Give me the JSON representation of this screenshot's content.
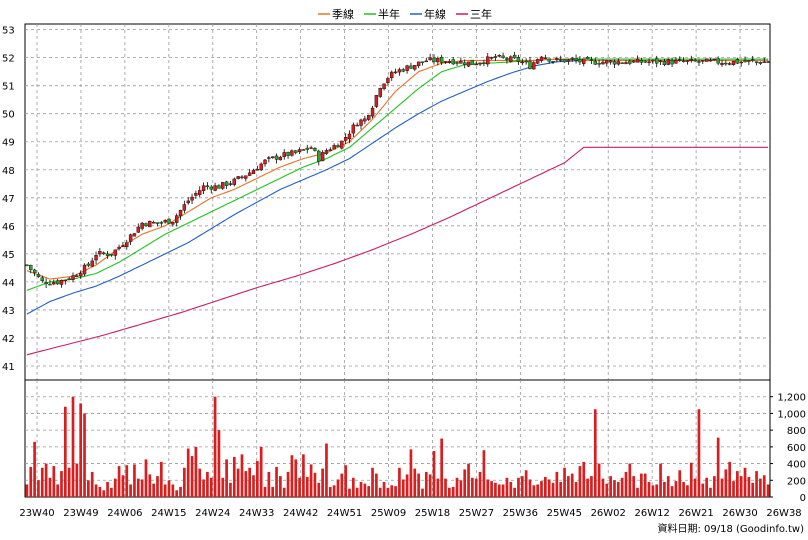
{
  "chart_data": {
    "type": "candlestick",
    "legend": [
      {
        "label": "季線",
        "color": "#e8732a"
      },
      {
        "label": "半年",
        "color": "#22c322"
      },
      {
        "label": "年線",
        "color": "#2060c8"
      },
      {
        "label": "三年",
        "color": "#c81e64"
      }
    ],
    "price_axis": {
      "min": 40.5,
      "max": 53.2,
      "ticks": [
        41,
        42,
        43,
        44,
        45,
        46,
        47,
        48,
        49,
        50,
        51,
        52,
        53
      ]
    },
    "volume_axis": {
      "min": 0,
      "max": 1400,
      "ticks": [
        0,
        200,
        400,
        600,
        800,
        1000,
        1200
      ],
      "tick_labels": [
        "0",
        "200",
        "400",
        "600",
        "800",
        "1,000",
        "1,200"
      ]
    },
    "x_labels": [
      "23W40",
      "23W49",
      "24W06",
      "24W15",
      "24W24",
      "24W33",
      "24W42",
      "24W51",
      "25W09",
      "25W18",
      "25W27",
      "25W36",
      "25W45",
      "26W02",
      "26W12",
      "26W21",
      "26W30",
      "26W38"
    ],
    "up_color": "#d81e1e",
    "down_color": "#2aa82a",
    "grid": true,
    "footer": "資料日期: 09/18  (Goodinfo.tw)",
    "price_anchors": [
      [
        0,
        44.6
      ],
      [
        4,
        44.0
      ],
      [
        8,
        44.0
      ],
      [
        12,
        44.2
      ],
      [
        16,
        44.6
      ],
      [
        18,
        45.0
      ],
      [
        22,
        45.0
      ],
      [
        26,
        45.5
      ],
      [
        30,
        46.1
      ],
      [
        34,
        46.1
      ],
      [
        38,
        46.2
      ],
      [
        42,
        46.9
      ],
      [
        46,
        47.4
      ],
      [
        50,
        47.4
      ],
      [
        54,
        47.6
      ],
      [
        58,
        47.9
      ],
      [
        62,
        48.3
      ],
      [
        66,
        48.5
      ],
      [
        70,
        48.6
      ],
      [
        74,
        48.8
      ],
      [
        76,
        48.4
      ],
      [
        78,
        48.7
      ],
      [
        82,
        49.0
      ],
      [
        86,
        49.7
      ],
      [
        88,
        49.8
      ],
      [
        90,
        50.3
      ],
      [
        92,
        51.0
      ],
      [
        94,
        51.3
      ],
      [
        96,
        51.5
      ],
      [
        100,
        51.7
      ],
      [
        104,
        51.9
      ],
      [
        110,
        51.9
      ],
      [
        116,
        51.8
      ],
      [
        122,
        52.0
      ],
      [
        128,
        51.9
      ],
      [
        131,
        51.7
      ],
      [
        134,
        52.1
      ],
      [
        137,
        51.9
      ],
      [
        142,
        51.9
      ],
      [
        145,
        51.85
      ]
    ],
    "ma_quarter": [
      [
        0,
        44.4
      ],
      [
        6,
        44.1
      ],
      [
        12,
        44.2
      ],
      [
        18,
        44.6
      ],
      [
        24,
        45.2
      ],
      [
        30,
        45.7
      ],
      [
        36,
        46.0
      ],
      [
        42,
        46.5
      ],
      [
        48,
        47.0
      ],
      [
        54,
        47.3
      ],
      [
        60,
        47.7
      ],
      [
        66,
        48.1
      ],
      [
        72,
        48.4
      ],
      [
        78,
        48.6
      ],
      [
        84,
        49.0
      ],
      [
        90,
        49.8
      ],
      [
        96,
        50.8
      ],
      [
        102,
        51.5
      ],
      [
        108,
        51.8
      ],
      [
        114,
        51.9
      ],
      [
        120,
        51.9
      ],
      [
        126,
        51.9
      ],
      [
        132,
        51.9
      ],
      [
        138,
        51.95
      ],
      [
        145,
        51.9
      ]
    ],
    "ma_half": [
      [
        0,
        43.7
      ],
      [
        6,
        44.0
      ],
      [
        12,
        44.1
      ],
      [
        18,
        44.3
      ],
      [
        24,
        44.7
      ],
      [
        30,
        45.2
      ],
      [
        36,
        45.7
      ],
      [
        42,
        46.1
      ],
      [
        48,
        46.5
      ],
      [
        54,
        46.9
      ],
      [
        60,
        47.3
      ],
      [
        66,
        47.7
      ],
      [
        72,
        48.1
      ],
      [
        78,
        48.4
      ],
      [
        84,
        48.8
      ],
      [
        90,
        49.5
      ],
      [
        96,
        50.2
      ],
      [
        102,
        50.9
      ],
      [
        108,
        51.5
      ],
      [
        114,
        51.75
      ],
      [
        120,
        51.8
      ],
      [
        126,
        51.85
      ],
      [
        132,
        51.9
      ],
      [
        138,
        51.95
      ],
      [
        145,
        51.95
      ]
    ],
    "ma_year": [
      [
        0,
        42.85
      ],
      [
        6,
        43.3
      ],
      [
        12,
        43.6
      ],
      [
        18,
        43.85
      ],
      [
        24,
        44.2
      ],
      [
        30,
        44.6
      ],
      [
        36,
        45.0
      ],
      [
        42,
        45.4
      ],
      [
        48,
        45.9
      ],
      [
        54,
        46.4
      ],
      [
        60,
        46.85
      ],
      [
        66,
        47.3
      ],
      [
        72,
        47.65
      ],
      [
        78,
        48.0
      ],
      [
        84,
        48.4
      ],
      [
        90,
        48.95
      ],
      [
        96,
        49.5
      ],
      [
        102,
        50.0
      ],
      [
        108,
        50.45
      ],
      [
        114,
        50.8
      ],
      [
        120,
        51.15
      ],
      [
        126,
        51.45
      ],
      [
        132,
        51.7
      ],
      [
        138,
        51.85
      ],
      [
        145,
        51.9
      ]
    ],
    "ma_3year": [
      [
        0,
        41.4
      ],
      [
        10,
        41.75
      ],
      [
        20,
        42.1
      ],
      [
        30,
        42.5
      ],
      [
        40,
        42.9
      ],
      [
        50,
        43.35
      ],
      [
        60,
        43.8
      ],
      [
        70,
        44.2
      ],
      [
        80,
        44.65
      ],
      [
        90,
        45.15
      ],
      [
        100,
        45.7
      ],
      [
        110,
        46.3
      ],
      [
        120,
        46.95
      ],
      [
        130,
        47.6
      ],
      [
        140,
        48.25
      ],
      [
        145,
        48.8
      ]
    ],
    "volumes": [
      150,
      360,
      660,
      200,
      350,
      400,
      230,
      370,
      150,
      310,
      1080,
      350,
      1200,
      400,
      1120,
      1000,
      200,
      300,
      150,
      120,
      80,
      180,
      110,
      220,
      370,
      260,
      380,
      150,
      390,
      220,
      210,
      450,
      270,
      160,
      250,
      420,
      150,
      200,
      150,
      80,
      120,
      350,
      580,
      490,
      600,
      340,
      210,
      300,
      230,
      1200,
      800,
      230,
      450,
      170,
      480,
      340,
      510,
      310,
      350,
      260,
      430,
      600,
      120,
      300,
      120,
      360,
      250,
      110,
      300,
      500,
      450,
      230,
      510,
      240,
      390,
      290,
      170,
      340,
      640,
      120,
      140,
      210,
      280,
      380,
      100,
      230,
      110,
      180,
      160,
      130,
      350,
      280,
      110,
      180,
      110,
      140,
      130,
      350,
      210,
      270,
      570,
      340,
      280,
      100,
      300,
      270,
      550,
      220,
      700,
      220,
      110,
      120,
      230,
      200,
      330,
      400,
      230,
      220,
      300,
      560,
      210,
      190,
      170,
      150,
      150,
      230,
      180,
      110,
      230,
      250,
      320,
      210,
      140,
      150,
      190,
      240,
      210,
      170,
      300,
      180,
      350,
      250,
      280,
      180,
      370,
      420,
      220,
      250,
      1050,
      400,
      220,
      160,
      250,
      200,
      180,
      230,
      300,
      400,
      250,
      110,
      280,
      280,
      180,
      140,
      150,
      400,
      180,
      250,
      130,
      190,
      320,
      180,
      140,
      410,
      220,
      1050,
      160,
      230,
      110,
      250,
      710,
      220,
      330,
      420,
      190,
      310,
      250,
      350,
      240,
      170,
      310,
      220,
      260,
      150
    ]
  }
}
